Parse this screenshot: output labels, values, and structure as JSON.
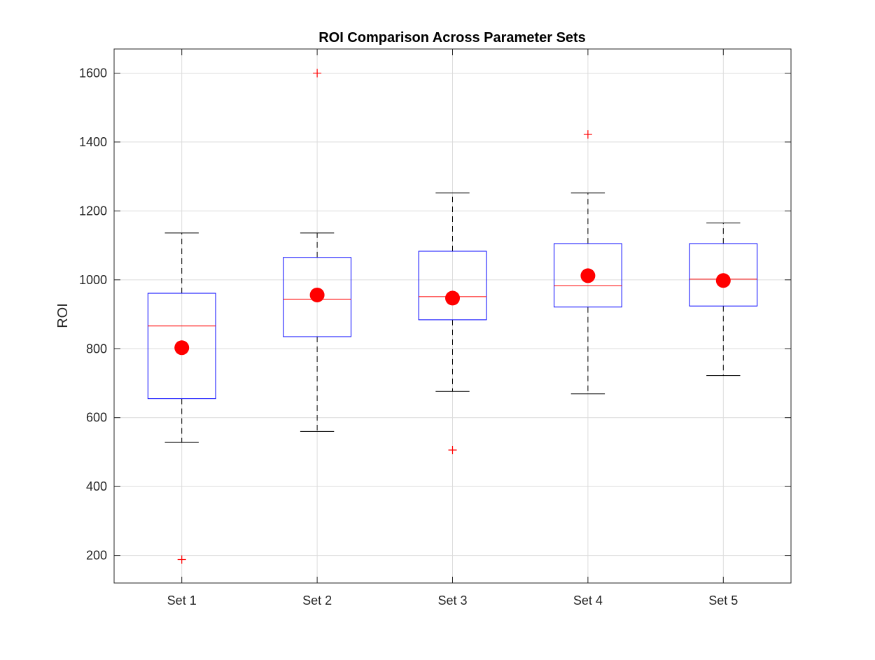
{
  "chart_data": {
    "type": "box",
    "title": "ROI Comparison Across Parameter Sets",
    "xlabel": "",
    "ylabel": "ROI",
    "ylim": [
      120,
      1670
    ],
    "yticks": [
      200,
      400,
      600,
      800,
      1000,
      1200,
      1400,
      1600
    ],
    "grid": true,
    "categories": [
      "Set 1",
      "Set 2",
      "Set 3",
      "Set 4",
      "Set 5"
    ],
    "boxes": [
      {
        "category": "Set 1",
        "whisker_low": 528,
        "q1": 655,
        "median": 866,
        "q3": 961,
        "whisker_high": 1136,
        "mean": 803,
        "outliers": [
          188
        ]
      },
      {
        "category": "Set 2",
        "whisker_low": 560,
        "q1": 835,
        "median": 944,
        "q3": 1065,
        "whisker_high": 1136,
        "mean": 956,
        "outliers": [
          1600
        ]
      },
      {
        "category": "Set 3",
        "whisker_low": 676,
        "q1": 884,
        "median": 951,
        "q3": 1083,
        "whisker_high": 1252,
        "mean": 947,
        "outliers": [
          506
        ]
      },
      {
        "category": "Set 4",
        "whisker_low": 669,
        "q1": 921,
        "median": 983,
        "q3": 1105,
        "whisker_high": 1252,
        "mean": 1012,
        "outliers": [
          1422
        ]
      },
      {
        "category": "Set 5",
        "whisker_low": 722,
        "q1": 924,
        "median": 1002,
        "q3": 1105,
        "whisker_high": 1165,
        "mean": 998,
        "outliers": []
      }
    ],
    "colors": {
      "box": "#0000ff",
      "median": "#ff0000",
      "whisker": "#000000",
      "outlier": "#ff0000",
      "mean": "#ff0000",
      "grid": "#dcdcdc",
      "axes": "#262626"
    }
  }
}
